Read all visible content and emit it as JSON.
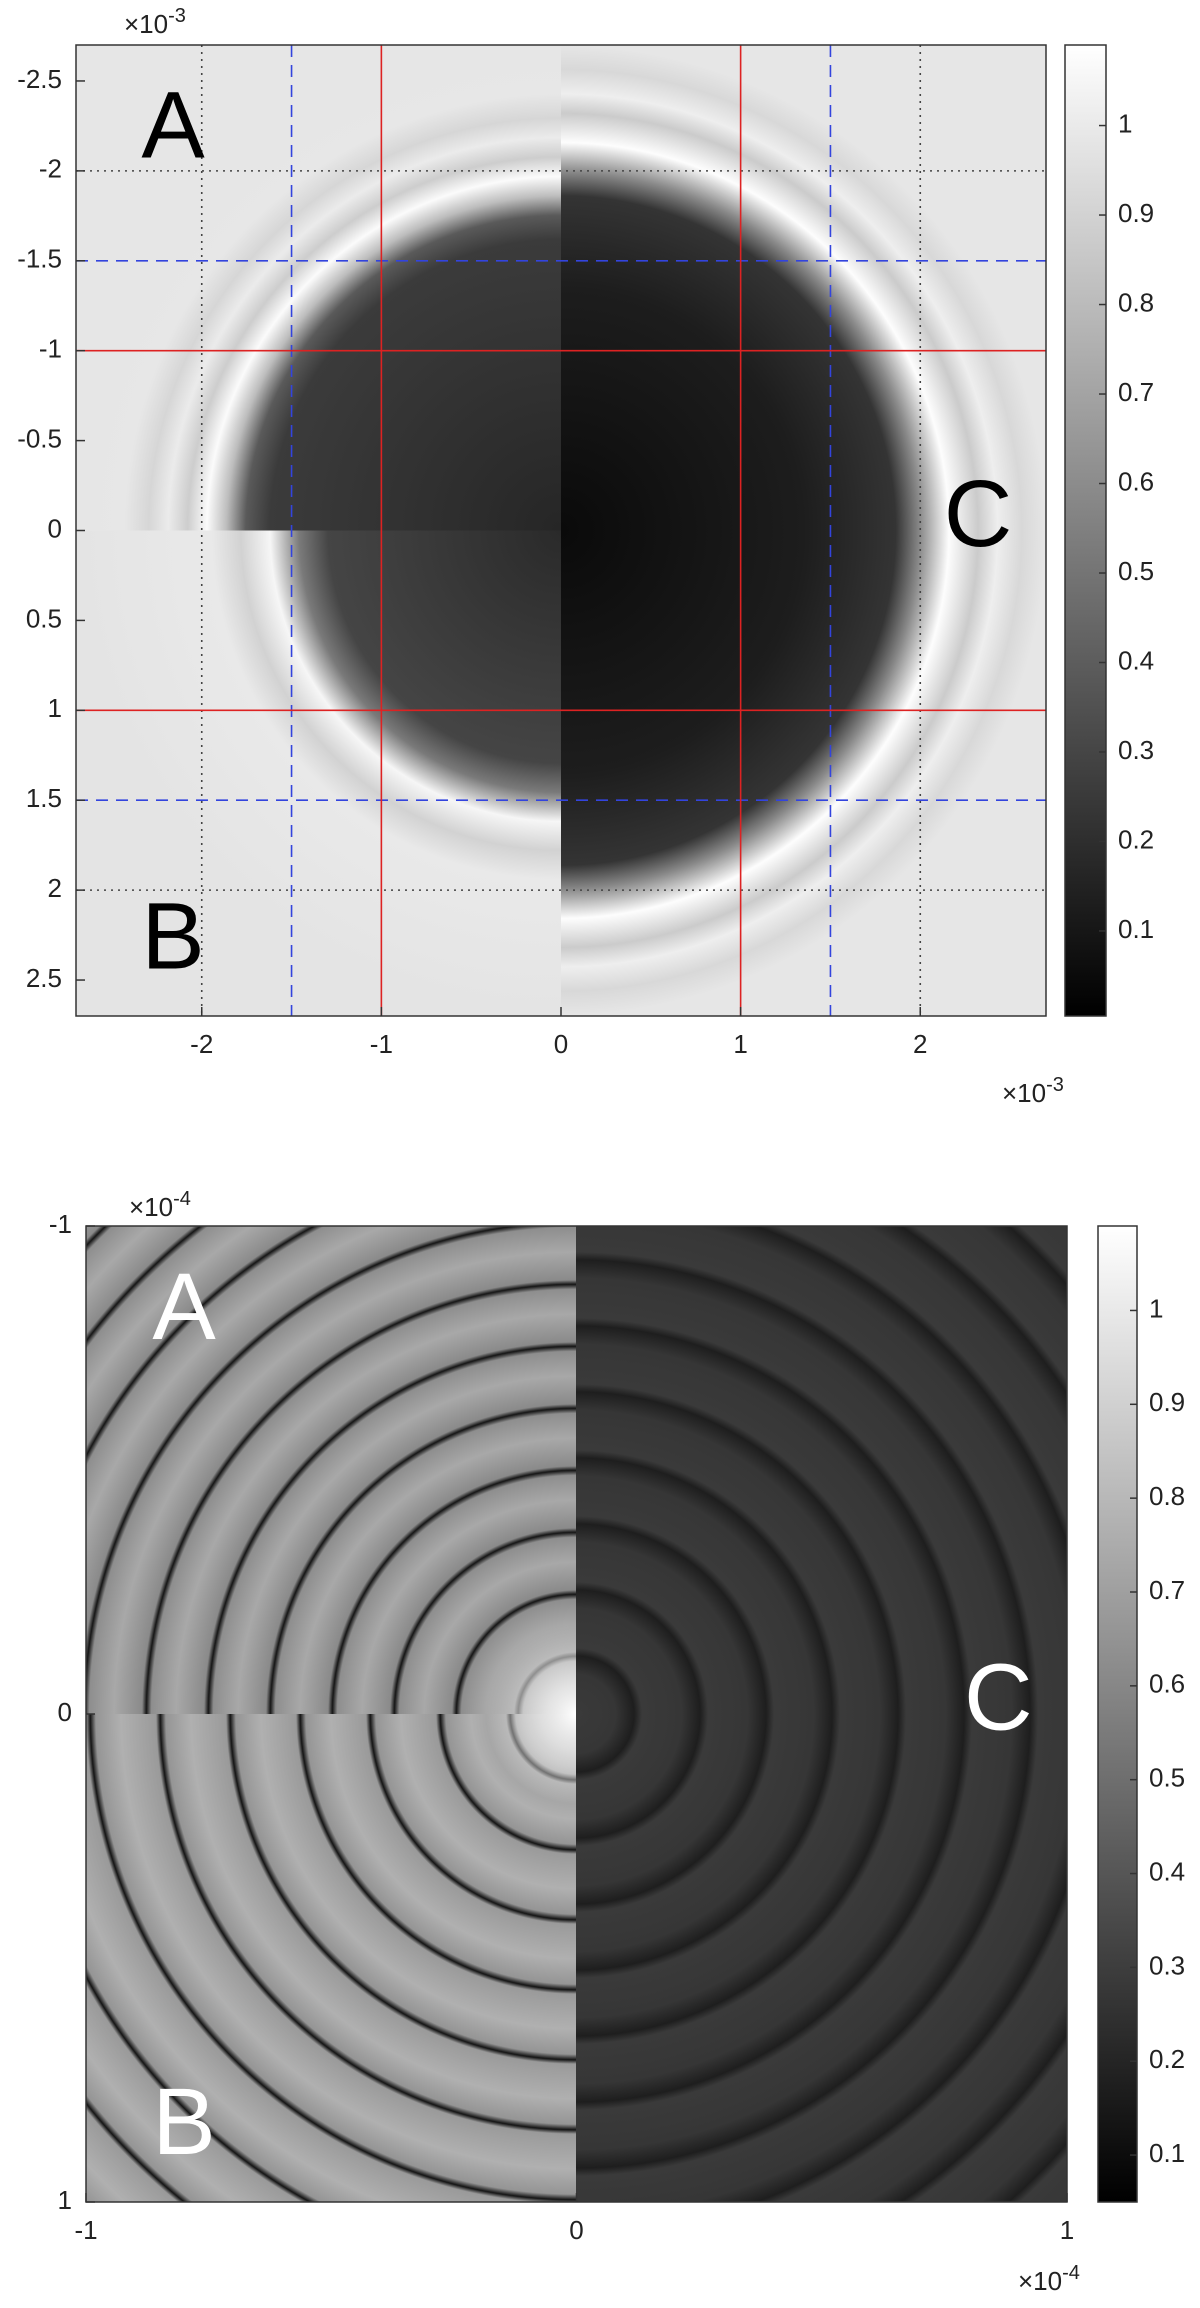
{
  "chart_data": [
    {
      "type": "heatmap",
      "colormap": "gray",
      "xlim": [
        -2.7,
        2.7
      ],
      "xticks": [
        -2,
        -1,
        0,
        1,
        2
      ],
      "ylim": [
        -2.7,
        2.7
      ],
      "yticks": [
        -2.5,
        -2,
        -1.5,
        -1,
        -0.5,
        0,
        0.5,
        1,
        1.5,
        2,
        2.5
      ],
      "y_direction": "reverse",
      "x_multiplier": {
        "base": "×10",
        "exponent": "-3"
      },
      "y_multiplier": {
        "base": "×10",
        "exponent": "-3"
      },
      "clim": [
        0.005,
        1.09
      ],
      "cticks": [
        0.1,
        0.2,
        0.3,
        0.4,
        0.5,
        0.6,
        0.7,
        0.8,
        0.9,
        1
      ],
      "guides": [
        {
          "values": [
            -2,
            2
          ],
          "color": "#444444",
          "dash": "2,5"
        },
        {
          "values": [
            -1.5,
            1.5
          ],
          "color": "#3344dd",
          "dash": "12,8"
        },
        {
          "values": [
            -1,
            1
          ],
          "color": "#dd2222",
          "dash": "none"
        }
      ],
      "annotations": [
        {
          "text": "A",
          "place": "top-left",
          "color": "#000000"
        },
        {
          "text": "B",
          "place": "bottom-left",
          "color": "#000000"
        },
        {
          "text": "C",
          "place": "right",
          "color": "#000000"
        }
      ]
    },
    {
      "type": "heatmap",
      "colormap": "gray",
      "xlim": [
        -1,
        1
      ],
      "xticks": [
        -1,
        0,
        1
      ],
      "ylim": [
        -1,
        1
      ],
      "yticks": [
        -1,
        0,
        1
      ],
      "y_direction": "reverse",
      "x_multiplier": {
        "base": "×10",
        "exponent": "-4"
      },
      "y_multiplier": {
        "base": "×10",
        "exponent": "-4"
      },
      "clim": [
        0.05,
        1.09
      ],
      "cticks": [
        0.1,
        0.2,
        0.3,
        0.4,
        0.5,
        0.6,
        0.7,
        0.8,
        0.9,
        1
      ],
      "annotations": [
        {
          "text": "A",
          "place": "top-left",
          "color": "#ffffff"
        },
        {
          "text": "B",
          "place": "bottom-left",
          "color": "#ffffff"
        },
        {
          "text": "C",
          "place": "right",
          "color": "#ffffff"
        }
      ]
    }
  ]
}
